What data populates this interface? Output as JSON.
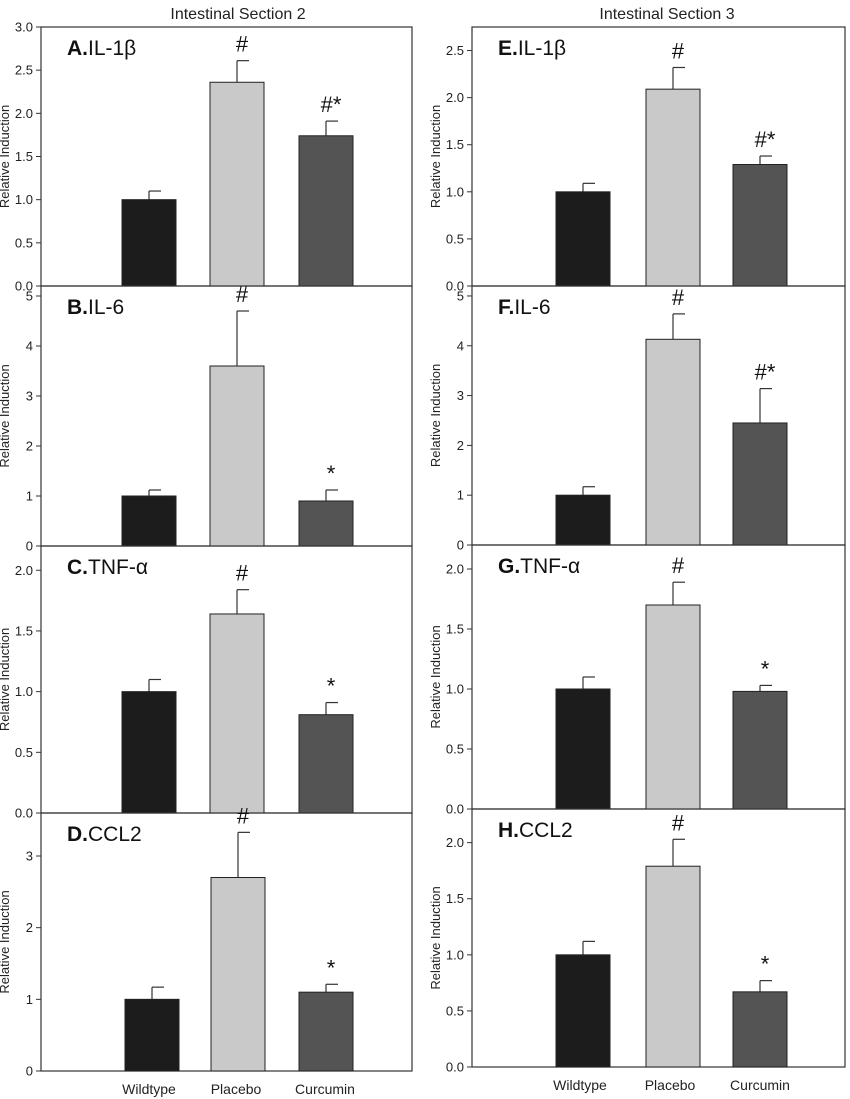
{
  "columns": [
    "Intestinal Section 2",
    "Intestinal Section 3"
  ],
  "x_categories": [
    "Wildtype",
    "Placebo",
    "Curcumin"
  ],
  "colors": {
    "Wildtype": "#1c1c1c",
    "Placebo": "#c9c9c9",
    "Curcumin": "#545454"
  },
  "chart_data": [
    {
      "type": "bar",
      "panel": "A.",
      "title": "IL-1β",
      "column": "Intestinal Section 2",
      "ylabel": "Relative Induction",
      "categories": [
        "Wildtype",
        "Placebo",
        "Curcumin"
      ],
      "values": [
        1.0,
        2.36,
        1.74
      ],
      "errors": [
        0.1,
        0.25,
        0.17
      ],
      "significance": [
        "",
        "#",
        "#*"
      ],
      "ylim": [
        0,
        3.0
      ],
      "yticks": [
        "0.0",
        "0.5",
        "1.0",
        "1.5",
        "2.0",
        "2.5",
        "3.0"
      ]
    },
    {
      "type": "bar",
      "panel": "B.",
      "title": "IL-6",
      "column": "Intestinal Section 2",
      "ylabel": "Relative Induction",
      "categories": [
        "Wildtype",
        "Placebo",
        "Curcumin"
      ],
      "values": [
        1.0,
        3.6,
        0.9
      ],
      "errors": [
        0.12,
        1.1,
        0.22
      ],
      "significance": [
        "",
        "#",
        "*"
      ],
      "ylim": [
        0,
        5.2
      ],
      "yticks": [
        "0",
        "1",
        "2",
        "3",
        "4",
        "5"
      ]
    },
    {
      "type": "bar",
      "panel": "C.",
      "title": "TNF-α",
      "column": "Intestinal Section 2",
      "ylabel": "Relative Induction",
      "categories": [
        "Wildtype",
        "Placebo",
        "Curcumin"
      ],
      "values": [
        1.0,
        1.64,
        0.81
      ],
      "errors": [
        0.1,
        0.2,
        0.1
      ],
      "significance": [
        "",
        "#",
        "*"
      ],
      "ylim": [
        0,
        2.2
      ],
      "yticks": [
        "0.0",
        "0.5",
        "1.0",
        "1.5",
        "2.0"
      ]
    },
    {
      "type": "bar",
      "panel": "D.",
      "title": "CCL2",
      "column": "Intestinal Section 2",
      "ylabel": "Relative Induction",
      "categories": [
        "Wildtype",
        "Placebo",
        "Curcumin"
      ],
      "values": [
        1.0,
        2.7,
        1.1
      ],
      "errors": [
        0.17,
        0.63,
        0.11
      ],
      "significance": [
        "",
        "#",
        "*"
      ],
      "ylim": [
        0,
        3.6
      ],
      "yticks": [
        "0",
        "1",
        "2",
        "3"
      ]
    },
    {
      "type": "bar",
      "panel": "E.",
      "title": "IL-1β",
      "column": "Intestinal Section 3",
      "ylabel": "Relative Induction",
      "categories": [
        "Wildtype",
        "Placebo",
        "Curcumin"
      ],
      "values": [
        1.0,
        2.09,
        1.29
      ],
      "errors": [
        0.09,
        0.23,
        0.09
      ],
      "significance": [
        "",
        "#",
        "#*"
      ],
      "ylim": [
        0,
        2.75
      ],
      "yticks": [
        "0.0",
        "0.5",
        "1.0",
        "1.5",
        "2.0",
        "2.5"
      ]
    },
    {
      "type": "bar",
      "panel": "F.",
      "title": "IL-6",
      "column": "Intestinal Section 3",
      "ylabel": "Relative Induction",
      "categories": [
        "Wildtype",
        "Placebo",
        "Curcumin"
      ],
      "values": [
        1.0,
        4.13,
        2.45
      ],
      "errors": [
        0.17,
        0.51,
        0.69
      ],
      "significance": [
        "",
        "#",
        "#*"
      ],
      "ylim": [
        0,
        5.2
      ],
      "yticks": [
        "0",
        "1",
        "2",
        "3",
        "4",
        "5"
      ]
    },
    {
      "type": "bar",
      "panel": "G.",
      "title": "TNF-α",
      "column": "Intestinal Section 3",
      "ylabel": "Relative Induction",
      "categories": [
        "Wildtype",
        "Placebo",
        "Curcumin"
      ],
      "values": [
        1.0,
        1.7,
        0.98
      ],
      "errors": [
        0.1,
        0.19,
        0.05
      ],
      "significance": [
        "",
        "#",
        "*"
      ],
      "ylim": [
        0,
        2.2
      ],
      "yticks": [
        "0.0",
        "0.5",
        "1.0",
        "1.5",
        "2.0"
      ]
    },
    {
      "type": "bar",
      "panel": "H.",
      "title": "CCL2",
      "column": "Intestinal Section 3",
      "ylabel": "Relative Induction",
      "categories": [
        "Wildtype",
        "Placebo",
        "Curcumin"
      ],
      "values": [
        1.0,
        1.79,
        0.67
      ],
      "errors": [
        0.12,
        0.24,
        0.1
      ],
      "significance": [
        "",
        "#",
        "*"
      ],
      "ylim": [
        0,
        2.3
      ],
      "yticks": [
        "0.0",
        "0.5",
        "1.0",
        "1.5",
        "2.0"
      ]
    }
  ]
}
